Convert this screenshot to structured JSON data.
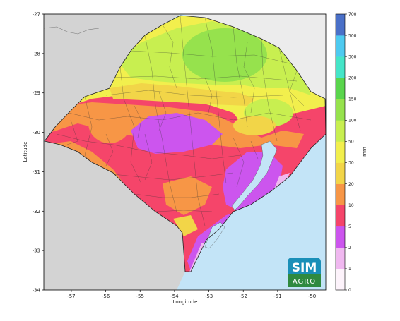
{
  "chart_data": {
    "type": "heatmap",
    "xlabel": "Longitude",
    "ylabel": "Latitude",
    "xlim": [
      -57.8,
      -49.6
    ],
    "ylim": [
      -34,
      -27
    ],
    "xticks": [
      "-57",
      "-56",
      "-55",
      "-54",
      "-53",
      "-52",
      "-51",
      "-50"
    ],
    "xtick_values": [
      -57,
      -56,
      -55,
      -54,
      -53,
      -52,
      -51,
      -50
    ],
    "yticks": [
      "-27",
      "-28",
      "-29",
      "-30",
      "-31",
      "-32",
      "-33",
      "-34"
    ],
    "ytick_values": [
      -27,
      -28,
      -29,
      -30,
      -31,
      -32,
      -33,
      -34
    ],
    "colorbar": {
      "label": "mm",
      "levels": [
        "0",
        "1",
        "2",
        "5",
        "10",
        "20",
        "30",
        "50",
        "100",
        "150",
        "200",
        "300",
        "500",
        "700"
      ],
      "colors": [
        "#fdf3fb",
        "#f0b8f0",
        "#cc55ee",
        "#f5456a",
        "#f79646",
        "#f2d548",
        "#f2ef4d",
        "#c8ef50",
        "#96e24d",
        "#5ad54d",
        "#45e5c8",
        "#4ecaf0",
        "#4a70c8",
        "#4b4aa8"
      ]
    },
    "colors": {
      "land_outside": "#d3d3d3",
      "ocean": "#c3e4f7",
      "border": "#333333"
    }
  },
  "logo": {
    "line1": "SIM",
    "line2": "AGRO",
    "bg": "#1a8fb8",
    "bg2": "#2f8a3f"
  }
}
